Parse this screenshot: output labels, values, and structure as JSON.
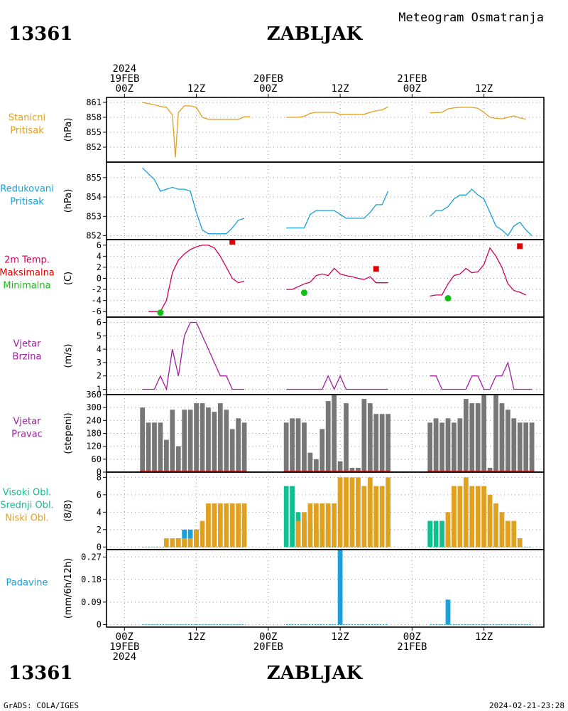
{
  "header": {
    "station_id": "13361",
    "station_name": "ZABLJAK",
    "title": "Meteogram Osmatranja"
  },
  "footer": {
    "station_id": "13361",
    "station_name": "ZABLJAK",
    "credit": "GrADS: COLA/IGES",
    "timestamp": "2024-02-21-23:28"
  },
  "time_axis": {
    "top_labels": [
      {
        "x": 0,
        "lines": [
          "2024",
          "19FEB",
          "00Z"
        ]
      },
      {
        "x": 12,
        "lines": [
          "12Z"
        ]
      },
      {
        "x": 24,
        "lines": [
          "20FEB",
          "00Z"
        ]
      },
      {
        "x": 36,
        "lines": [
          "12Z"
        ]
      },
      {
        "x": 48,
        "lines": [
          "21FEB",
          "00Z"
        ]
      },
      {
        "x": 60,
        "lines": [
          "12Z"
        ]
      }
    ],
    "bottom_labels": [
      {
        "x": 0,
        "lines": [
          "00Z",
          "19FEB",
          "2024"
        ]
      },
      {
        "x": 12,
        "lines": [
          "12Z"
        ]
      },
      {
        "x": 24,
        "lines": [
          "00Z",
          "20FEB"
        ]
      },
      {
        "x": 36,
        "lines": [
          "12Z"
        ]
      },
      {
        "x": 48,
        "lines": [
          "00Z",
          "21FEB"
        ]
      },
      {
        "x": 60,
        "lines": [
          "12Z"
        ]
      }
    ],
    "xlim": [
      -3,
      70
    ]
  },
  "panel_labels": {
    "p1": {
      "lines": [
        "Stanicni",
        "Pritisak"
      ],
      "color": "#e0a020",
      "ylabel": "(hPa)"
    },
    "p2": {
      "lines": [
        "Redukovani",
        "Pritisak"
      ],
      "color": "#1aa0d8",
      "ylabel": "(hPa)"
    },
    "p3": {
      "lines": [
        "2m Temp.",
        "Maksimalna",
        "Minimalna"
      ],
      "colors": [
        "#d0005a",
        "#e00000",
        "#10c010"
      ],
      "ylabel": "(C)"
    },
    "p4": {
      "lines": [
        "Vjetar",
        "Brzina"
      ],
      "color": "#a020a0",
      "ylabel": "(m/s)"
    },
    "p5": {
      "lines": [
        "Vjetar",
        "Pravac"
      ],
      "color": "#a020a0",
      "ylabel": "(stepeni)"
    },
    "p6": {
      "lines": [
        "Visoki Obl.",
        "Srednji Obl.",
        "Niski Obl."
      ],
      "colors": [
        "#10c090",
        "#10c090",
        "#e0a020"
      ],
      "ylabel": "(8/8)"
    },
    "p7": {
      "lines": [
        "Padavine"
      ],
      "color": "#1aa0d8",
      "ylabel": "(mm/6h/12h)"
    }
  },
  "chart_data": [
    {
      "type": "line",
      "id": "station_pressure",
      "ylim": [
        849,
        862
      ],
      "yticks": [
        852,
        855,
        858,
        861
      ],
      "grid": true,
      "color": "#e0a020",
      "segments": [
        [
          [
            3,
            861
          ],
          [
            5,
            860.5
          ],
          [
            6,
            860.2
          ],
          [
            7,
            860
          ],
          [
            8,
            858.5
          ],
          [
            8.5,
            850
          ],
          [
            9,
            859
          ],
          [
            10,
            860.3
          ],
          [
            11,
            860.3
          ],
          [
            12,
            860
          ],
          [
            13,
            858
          ],
          [
            14,
            857.6
          ],
          [
            15,
            857.6
          ],
          [
            16,
            857.6
          ],
          [
            18,
            857.6
          ],
          [
            19,
            857.6
          ],
          [
            20,
            858.1
          ],
          [
            21,
            858.1
          ]
        ],
        [
          [
            27,
            858
          ],
          [
            29,
            858
          ],
          [
            30,
            858.2
          ],
          [
            31,
            858.8
          ],
          [
            32,
            859
          ],
          [
            34,
            859
          ],
          [
            35,
            859
          ],
          [
            36,
            858.6
          ],
          [
            38,
            858.6
          ],
          [
            40,
            858.6
          ],
          [
            41,
            859
          ],
          [
            42,
            859.3
          ],
          [
            43,
            859.5
          ],
          [
            44,
            860.1
          ]
        ],
        [
          [
            51,
            858.9
          ],
          [
            53,
            859
          ],
          [
            54,
            859.7
          ],
          [
            55,
            859.9
          ],
          [
            56,
            860
          ],
          [
            58,
            860
          ],
          [
            59,
            859.8
          ],
          [
            60,
            859
          ],
          [
            61,
            858
          ],
          [
            62,
            857.8
          ],
          [
            63,
            857.7
          ],
          [
            64,
            858
          ],
          [
            65,
            858.3
          ],
          [
            66,
            857.9
          ],
          [
            67,
            857.6
          ]
        ]
      ]
    },
    {
      "type": "line",
      "id": "reduced_pressure",
      "ylim": [
        851.8,
        855.8
      ],
      "yticks": [
        852,
        853,
        854,
        855
      ],
      "grid": true,
      "color": "#1aa0d8",
      "segments": [
        [
          [
            3,
            855.5
          ],
          [
            5,
            854.9
          ],
          [
            6,
            854.3
          ],
          [
            7,
            854.4
          ],
          [
            8,
            854.5
          ],
          [
            9,
            854.4
          ],
          [
            10,
            854.4
          ],
          [
            11,
            854.3
          ],
          [
            12,
            853.2
          ],
          [
            13,
            852.3
          ],
          [
            14,
            852.1
          ],
          [
            15,
            852.1
          ],
          [
            17,
            852.1
          ],
          [
            18,
            852.4
          ],
          [
            19,
            852.8
          ],
          [
            20,
            852.9
          ]
        ],
        [
          [
            27,
            852.4
          ],
          [
            29,
            852.4
          ],
          [
            30,
            852.4
          ],
          [
            31,
            853.1
          ],
          [
            32,
            853.3
          ],
          [
            35,
            853.3
          ],
          [
            36,
            853.1
          ],
          [
            37,
            852.9
          ],
          [
            40,
            852.9
          ],
          [
            41,
            853.2
          ],
          [
            42,
            853.6
          ],
          [
            43,
            853.6
          ],
          [
            44,
            854.3
          ]
        ],
        [
          [
            51,
            853
          ],
          [
            52,
            853.3
          ],
          [
            53,
            853.3
          ],
          [
            54,
            853.5
          ],
          [
            55,
            853.9
          ],
          [
            56,
            854.1
          ],
          [
            57,
            854.1
          ],
          [
            58,
            854.4
          ],
          [
            59,
            854.1
          ],
          [
            60,
            853.9
          ],
          [
            61,
            853.2
          ],
          [
            62,
            852.5
          ],
          [
            63,
            852.3
          ],
          [
            64,
            852.0
          ],
          [
            65,
            852.5
          ],
          [
            66,
            852.7
          ],
          [
            67,
            852.3
          ],
          [
            68,
            852.0
          ]
        ]
      ]
    },
    {
      "type": "line",
      "id": "temperature_2m",
      "ylim": [
        -7,
        7
      ],
      "yticks": [
        -6,
        -4,
        -2,
        0,
        2,
        4,
        6
      ],
      "grid": true,
      "color": "#d0005a",
      "segments": [
        [
          [
            4,
            -6
          ],
          [
            6,
            -6
          ],
          [
            7,
            -4
          ],
          [
            8,
            1
          ],
          [
            9,
            3.3
          ],
          [
            10,
            4.4
          ],
          [
            11,
            5.2
          ],
          [
            12,
            5.7
          ],
          [
            13,
            6
          ],
          [
            14,
            6
          ],
          [
            15,
            5.5
          ],
          [
            16,
            4
          ],
          [
            17,
            2
          ],
          [
            18,
            0
          ],
          [
            19,
            -0.8
          ],
          [
            20,
            -0.5
          ]
        ],
        [
          [
            27,
            -2
          ],
          [
            28,
            -2
          ],
          [
            29,
            -1.5
          ],
          [
            30,
            -1
          ],
          [
            31,
            -0.7
          ],
          [
            32,
            0.5
          ],
          [
            33,
            0.8
          ],
          [
            34,
            0.5
          ],
          [
            35,
            1.8
          ],
          [
            36,
            0.8
          ],
          [
            37,
            0.5
          ],
          [
            38,
            0.3
          ],
          [
            39,
            0
          ],
          [
            40,
            -0.2
          ],
          [
            41,
            0.3
          ],
          [
            42,
            -0.8
          ],
          [
            43,
            -0.8
          ],
          [
            44,
            -0.8
          ]
        ],
        [
          [
            51,
            -3.2
          ],
          [
            52,
            -3
          ],
          [
            53,
            -3
          ],
          [
            54,
            -1
          ],
          [
            55,
            0.5
          ],
          [
            56,
            0.8
          ],
          [
            57,
            1.8
          ],
          [
            58,
            1
          ],
          [
            59,
            1.2
          ],
          [
            60,
            2.5
          ],
          [
            61,
            5.5
          ],
          [
            62,
            4
          ],
          [
            63,
            2
          ],
          [
            64,
            -1
          ],
          [
            65,
            -2.2
          ],
          [
            66,
            -2.5
          ],
          [
            67,
            -3
          ]
        ]
      ],
      "max_points": [
        [
          18,
          6.6
        ],
        [
          42,
          1.7
        ],
        [
          66,
          5.8
        ]
      ],
      "min_points": [
        [
          6,
          -6.2
        ],
        [
          30,
          -2.6
        ],
        [
          54,
          -3.6
        ]
      ],
      "max_color": "#e00000",
      "min_color": "#10c010"
    },
    {
      "type": "line",
      "id": "wind_speed",
      "ylim": [
        0.6,
        6.4
      ],
      "yticks": [
        1,
        2,
        3,
        4,
        5,
        6
      ],
      "grid": true,
      "color": "#a020a0",
      "segments": [
        [
          [
            3,
            1
          ],
          [
            5,
            1
          ],
          [
            6,
            2
          ],
          [
            7,
            1
          ],
          [
            8,
            4
          ],
          [
            9,
            2
          ],
          [
            10,
            5
          ],
          [
            11,
            6
          ],
          [
            12,
            6
          ],
          [
            13,
            5
          ],
          [
            14,
            4
          ],
          [
            15,
            3
          ],
          [
            16,
            2
          ],
          [
            17,
            2
          ],
          [
            18,
            1
          ],
          [
            20,
            1
          ]
        ],
        [
          [
            27,
            1
          ],
          [
            30,
            1
          ],
          [
            33,
            1
          ],
          [
            34,
            2
          ],
          [
            35,
            1
          ],
          [
            36,
            2
          ],
          [
            37,
            1
          ],
          [
            40,
            1
          ],
          [
            44,
            1
          ]
        ],
        [
          [
            51,
            2
          ],
          [
            52,
            2
          ],
          [
            53,
            1
          ],
          [
            57,
            1
          ],
          [
            58,
            2
          ],
          [
            59,
            2
          ],
          [
            60,
            1
          ],
          [
            61,
            1
          ],
          [
            62,
            2
          ],
          [
            63,
            2
          ],
          [
            64,
            3
          ],
          [
            65,
            1
          ],
          [
            68,
            1
          ]
        ]
      ]
    },
    {
      "type": "bar",
      "id": "wind_direction",
      "ylim": [
        0,
        360
      ],
      "yticks": [
        0,
        60,
        120,
        180,
        240,
        300,
        360
      ],
      "grid": true,
      "color": "#777777",
      "baseline_color": "#e00000",
      "x": [
        3,
        4,
        5,
        6,
        7,
        8,
        9,
        10,
        11,
        12,
        13,
        14,
        15,
        16,
        17,
        18,
        19,
        20,
        27,
        28,
        29,
        30,
        31,
        32,
        33,
        34,
        35,
        36,
        37,
        38,
        39,
        40,
        41,
        42,
        43,
        44,
        51,
        52,
        53,
        54,
        55,
        56,
        57,
        58,
        59,
        60,
        61,
        62,
        63,
        64,
        65,
        66,
        67,
        68
      ],
      "values": [
        300,
        230,
        230,
        230,
        150,
        290,
        120,
        290,
        290,
        320,
        320,
        300,
        280,
        320,
        290,
        200,
        250,
        230,
        230,
        250,
        250,
        230,
        90,
        60,
        200,
        330,
        360,
        50,
        320,
        20,
        20,
        340,
        320,
        270,
        270,
        270,
        230,
        250,
        230,
        250,
        230,
        250,
        340,
        320,
        320,
        360,
        20,
        360,
        320,
        290,
        250,
        230,
        230,
        230
      ]
    },
    {
      "type": "bar",
      "id": "cloud_cover",
      "ylim": [
        -0.3,
        8.6
      ],
      "yticks": [
        0,
        2,
        4,
        6,
        8
      ],
      "grid": true,
      "series": [
        {
          "name": "Visoki Obl.",
          "color": "#10c090",
          "x": [
            27,
            28,
            29,
            30,
            31,
            32,
            33,
            34,
            35,
            51,
            52,
            53,
            54
          ],
          "values": [
            7,
            7,
            4,
            3,
            3,
            2,
            2,
            2,
            2,
            3,
            3,
            3,
            1
          ]
        },
        {
          "name": "Srednji Obl.",
          "color": "#1aa0d8",
          "x": [
            9,
            10,
            11,
            12
          ],
          "values": [
            1,
            2,
            2,
            2
          ]
        },
        {
          "name": "Niski Obl.",
          "color": "#e0a020",
          "x": [
            7,
            8,
            9,
            10,
            11,
            12,
            13,
            14,
            15,
            16,
            17,
            18,
            19,
            20,
            29,
            30,
            31,
            32,
            33,
            34,
            35,
            36,
            37,
            38,
            39,
            40,
            41,
            42,
            43,
            44,
            54,
            55,
            56,
            57,
            58,
            59,
            60,
            61,
            62,
            63,
            64,
            65,
            66
          ],
          "values": [
            1,
            1,
            1,
            1,
            1,
            2,
            3,
            5,
            5,
            5,
            5,
            5,
            5,
            5,
            3,
            4,
            5,
            5,
            5,
            5,
            5,
            8,
            8,
            8,
            8,
            7,
            8,
            7,
            7,
            8,
            4,
            7,
            7,
            8,
            7,
            7,
            7,
            6,
            5,
            4,
            3,
            3,
            1
          ]
        }
      ]
    },
    {
      "type": "bar",
      "id": "precipitation",
      "ylim": [
        -0.01,
        0.3
      ],
      "yticks": [
        0,
        0.09,
        0.18,
        0.27
      ],
      "ytick_labels": [
        "0",
        "0.09",
        "0.18",
        "0.27"
      ],
      "grid": true,
      "color": "#1aa0d8",
      "x": [
        36,
        54
      ],
      "values": [
        0.3,
        0.1
      ]
    }
  ]
}
